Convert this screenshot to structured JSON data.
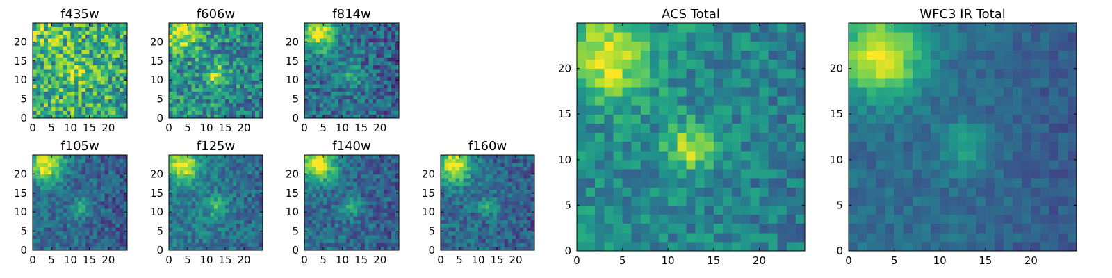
{
  "chart_data": [
    {
      "type": "heatmap",
      "title": "f435w",
      "xticks": [
        0,
        5,
        10,
        15,
        20
      ],
      "yticks": [
        0,
        5,
        10,
        15,
        20
      ],
      "xlim": [
        0,
        25
      ],
      "ylim": [
        0,
        25
      ],
      "grid": false,
      "colormap": "viridis",
      "pattern": {
        "bright_spots": [
          {
            "x": 3,
            "y": 22,
            "level": 0.75
          },
          {
            "x": 12,
            "y": 11,
            "level": 0.9
          }
        ],
        "background": 0.65,
        "noise": 0.3
      }
    },
    {
      "type": "heatmap",
      "title": "f606w",
      "xticks": [
        0,
        5,
        10,
        15,
        20
      ],
      "yticks": [
        0,
        5,
        10,
        15,
        20
      ],
      "xlim": [
        0,
        25
      ],
      "ylim": [
        0,
        25
      ],
      "grid": false,
      "colormap": "viridis",
      "pattern": {
        "bright_spots": [
          {
            "x": 3,
            "y": 22,
            "level": 1.0
          },
          {
            "x": 12,
            "y": 11,
            "level": 0.9
          }
        ],
        "background": 0.5,
        "noise": 0.25
      }
    },
    {
      "type": "heatmap",
      "title": "f814w",
      "xticks": [
        0,
        5,
        10,
        15,
        20
      ],
      "yticks": [
        0,
        5,
        10,
        15,
        20
      ],
      "xlim": [
        0,
        25
      ],
      "ylim": [
        0,
        25
      ],
      "grid": false,
      "colormap": "viridis",
      "pattern": {
        "bright_spots": [
          {
            "x": 3,
            "y": 22,
            "level": 1.0
          },
          {
            "x": 12,
            "y": 11,
            "level": 0.7
          }
        ],
        "background": 0.38,
        "noise": 0.2
      }
    },
    {
      "type": "heatmap",
      "title": "f105w",
      "xticks": [
        0,
        5,
        10,
        15,
        20
      ],
      "yticks": [
        0,
        5,
        10,
        15,
        20
      ],
      "xlim": [
        0,
        25
      ],
      "ylim": [
        0,
        25
      ],
      "grid": false,
      "colormap": "viridis",
      "pattern": {
        "bright_spots": [
          {
            "x": 3,
            "y": 22,
            "level": 1.0
          },
          {
            "x": 12,
            "y": 11,
            "level": 0.65
          }
        ],
        "background": 0.35,
        "noise": 0.15
      }
    },
    {
      "type": "heatmap",
      "title": "f125w",
      "xticks": [
        0,
        5,
        10,
        15,
        20
      ],
      "yticks": [
        0,
        5,
        10,
        15,
        20
      ],
      "xlim": [
        0,
        25
      ],
      "ylim": [
        0,
        25
      ],
      "grid": false,
      "colormap": "viridis",
      "pattern": {
        "bright_spots": [
          {
            "x": 3,
            "y": 22,
            "level": 1.0
          },
          {
            "x": 12,
            "y": 11,
            "level": 0.7
          }
        ],
        "background": 0.4,
        "noise": 0.15
      }
    },
    {
      "type": "heatmap",
      "title": "f140w",
      "xticks": [
        0,
        5,
        10,
        15,
        20
      ],
      "yticks": [
        0,
        5,
        10,
        15,
        20
      ],
      "xlim": [
        0,
        25
      ],
      "ylim": [
        0,
        25
      ],
      "grid": false,
      "colormap": "viridis",
      "pattern": {
        "bright_spots": [
          {
            "x": 3,
            "y": 22,
            "level": 1.0
          },
          {
            "x": 12,
            "y": 11,
            "level": 0.6
          }
        ],
        "background": 0.35,
        "noise": 0.15
      }
    },
    {
      "type": "heatmap",
      "title": "f160w",
      "xticks": [
        0,
        5,
        10,
        15,
        20
      ],
      "yticks": [
        0,
        5,
        10,
        15,
        20
      ],
      "xlim": [
        0,
        25
      ],
      "ylim": [
        0,
        25
      ],
      "grid": false,
      "colormap": "viridis",
      "pattern": {
        "bright_spots": [
          {
            "x": 3,
            "y": 22,
            "level": 1.0
          },
          {
            "x": 12,
            "y": 11,
            "level": 0.6
          }
        ],
        "background": 0.35,
        "noise": 0.15
      }
    },
    {
      "type": "heatmap",
      "title": "ACS Total",
      "xticks": [
        0,
        5,
        10,
        15,
        20
      ],
      "yticks": [
        0,
        5,
        10,
        15,
        20
      ],
      "xlim": [
        0,
        25
      ],
      "ylim": [
        0,
        25
      ],
      "grid": false,
      "colormap": "viridis",
      "pattern": {
        "bright_spots": [
          {
            "x": 3,
            "y": 21,
            "level": 1.0
          },
          {
            "x": 12,
            "y": 11,
            "level": 0.88
          }
        ],
        "background": 0.48,
        "noise": 0.16
      }
    },
    {
      "type": "heatmap",
      "title": "WFC3 IR Total",
      "xticks": [
        0,
        5,
        10,
        15,
        20
      ],
      "yticks": [
        0,
        5,
        10,
        15,
        20
      ],
      "xlim": [
        0,
        25
      ],
      "ylim": [
        0,
        25
      ],
      "grid": false,
      "colormap": "viridis",
      "pattern": {
        "bright_spots": [
          {
            "x": 3,
            "y": 21,
            "level": 1.0
          },
          {
            "x": 12,
            "y": 11,
            "level": 0.6
          }
        ],
        "background": 0.35,
        "noise": 0.08
      }
    }
  ],
  "colors": {
    "viridis_low": "#440154",
    "viridis_mid": "#21918c",
    "viridis_high": "#fde725",
    "axes": "#000000"
  }
}
